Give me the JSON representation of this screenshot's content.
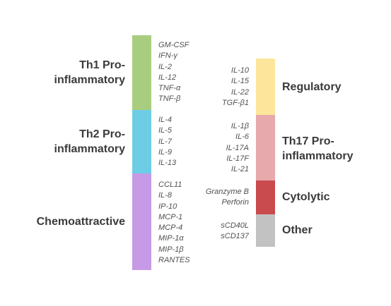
{
  "left": [
    {
      "key": "th1",
      "label": "Th1 Pro-\ninflammatory",
      "color": "#a9cd7e",
      "items": [
        "GM-CSF",
        "IFN-γ",
        "IL-2",
        "IL-12",
        "TNF-α",
        "TNF-β"
      ]
    },
    {
      "key": "th2",
      "label": "Th2 Pro-\ninflammatory",
      "color": "#6ccde4",
      "items": [
        "IL-4",
        "IL-5",
        "IL-7",
        "IL-9",
        "IL-13"
      ]
    },
    {
      "key": "chemo",
      "label": "Chemoattractive",
      "color": "#c69ae6",
      "items": [
        "CCL11",
        "IL-8",
        "IP-10",
        "MCP-1",
        "MCP-4",
        "MIP-1α",
        "MIP-1β",
        "RANTES"
      ]
    }
  ],
  "right": [
    {
      "key": "regulatory",
      "label": "Regulatory",
      "color": "#fde69b",
      "items": [
        "IL-10",
        "IL-15",
        "IL-22",
        "TGF-β1"
      ]
    },
    {
      "key": "th17",
      "label": "Th17 Pro-\ninflammatory",
      "color": "#e7a9ab",
      "items": [
        "IL-1β",
        "IL-6",
        "IL-17A",
        "IL-17F",
        "IL-21"
      ]
    },
    {
      "key": "cytolytic",
      "label": "Cytolytic",
      "color": "#c94b4d",
      "items": [
        "Granzyme B",
        "Perforin"
      ]
    },
    {
      "key": "other",
      "label": "Other",
      "color": "#c2c2c2",
      "items": [
        "sCD40L",
        "sCD137"
      ]
    }
  ]
}
